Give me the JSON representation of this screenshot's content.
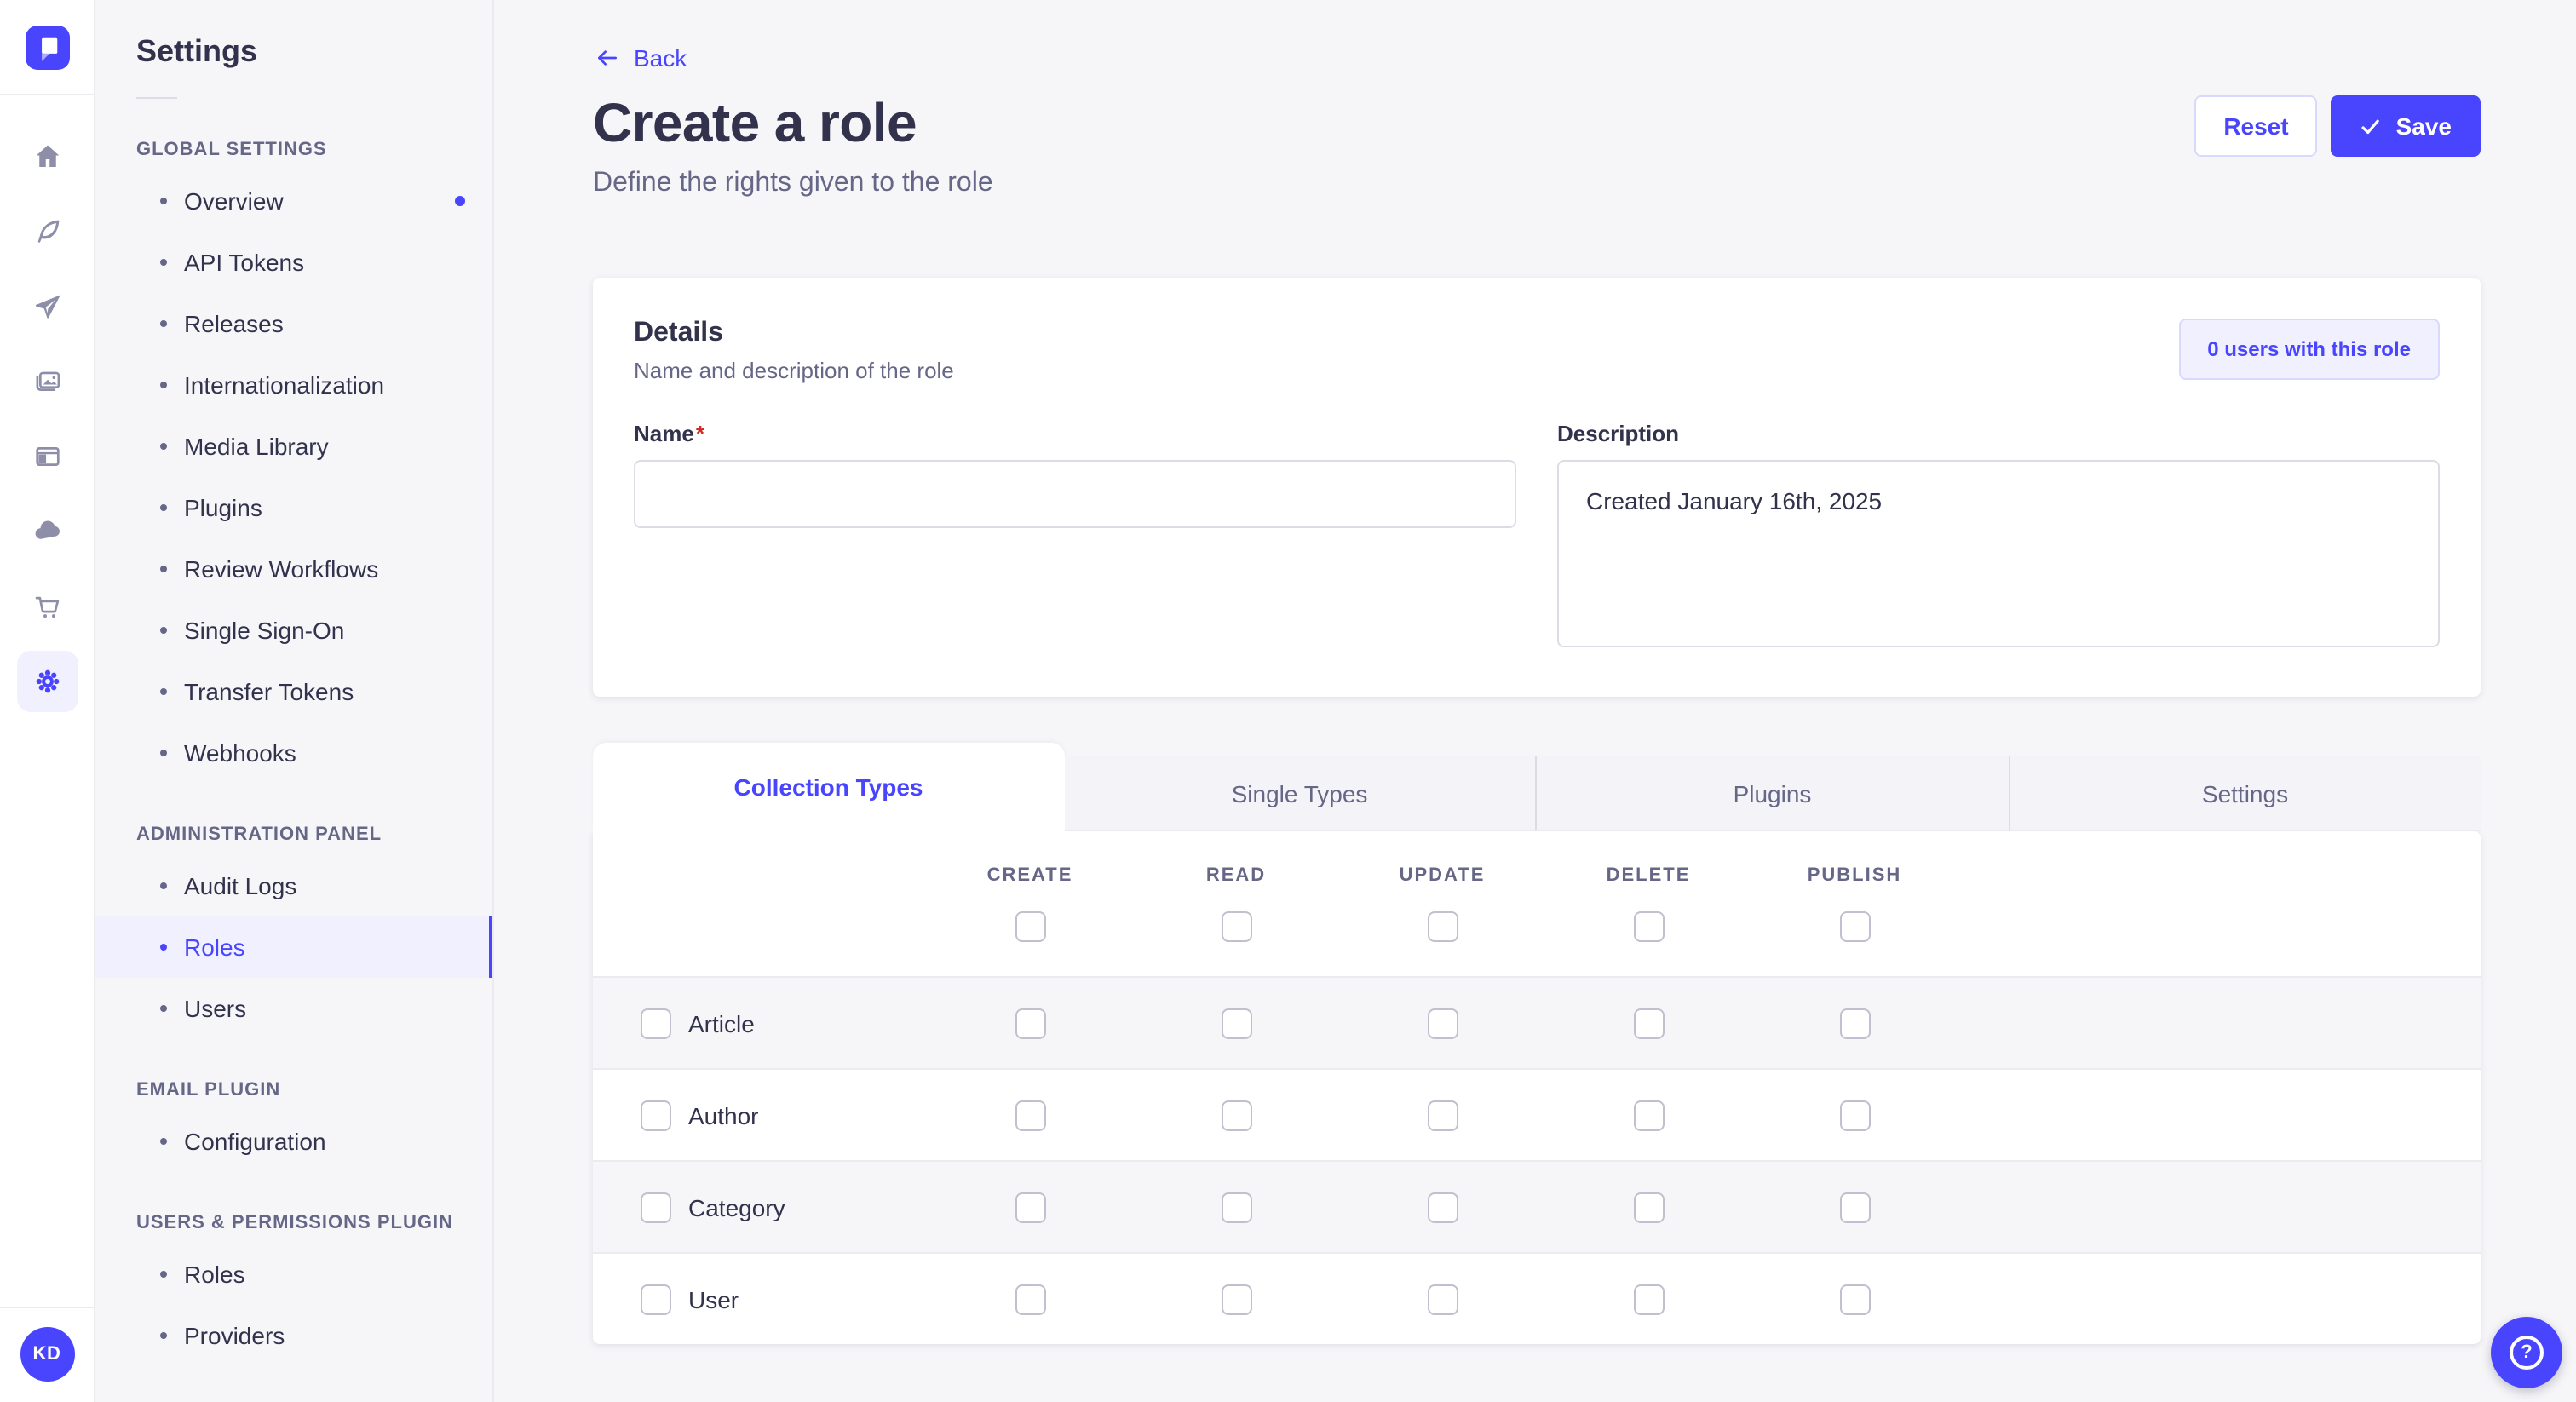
{
  "colors": {
    "accent": "#4945ff",
    "accent_soft_bg": "#f0f0ff",
    "accent_border": "#d9d8ff",
    "page_bg": "#f6f6f9",
    "surface": "#ffffff",
    "text": "#32324d",
    "text_muted": "#666687",
    "border": "#dcdce4",
    "border_light": "#eaeaef",
    "required_red": "#d02b20"
  },
  "left_rail": {
    "logo_icon": "strapi-logo",
    "icons": [
      "home-icon",
      "feather-icon",
      "paper-plane-icon",
      "pictures-icon",
      "layout-icon",
      "cloud-icon",
      "cart-icon",
      "gear-icon"
    ],
    "active_icon": "gear-icon",
    "avatar_initials": "KD"
  },
  "sidebar": {
    "title": "Settings",
    "sections": [
      {
        "label": "GLOBAL SETTINGS",
        "items": [
          {
            "label": "Overview",
            "notification": true
          },
          {
            "label": "API Tokens"
          },
          {
            "label": "Releases"
          },
          {
            "label": "Internationalization"
          },
          {
            "label": "Media Library"
          },
          {
            "label": "Plugins"
          },
          {
            "label": "Review Workflows"
          },
          {
            "label": "Single Sign-On"
          },
          {
            "label": "Transfer Tokens"
          },
          {
            "label": "Webhooks"
          }
        ]
      },
      {
        "label": "ADMINISTRATION PANEL",
        "items": [
          {
            "label": "Audit Logs"
          },
          {
            "label": "Roles",
            "active": true
          },
          {
            "label": "Users"
          }
        ]
      },
      {
        "label": "EMAIL PLUGIN",
        "items": [
          {
            "label": "Configuration"
          }
        ]
      },
      {
        "label": "USERS & PERMISSIONS PLUGIN",
        "items": [
          {
            "label": "Roles"
          },
          {
            "label": "Providers"
          }
        ]
      }
    ]
  },
  "header": {
    "back_label": "Back",
    "title": "Create a role",
    "subtitle": "Define the rights given to the role",
    "reset_label": "Reset",
    "save_label": "Save",
    "save_icon": "check-icon"
  },
  "details": {
    "title": "Details",
    "subtitle": "Name and description of the role",
    "users_button": "0 users with this role",
    "name_label": "Name",
    "required_mark": "*",
    "name_value": "",
    "description_label": "Description",
    "description_value": "Created January 16th, 2025"
  },
  "tabs": [
    {
      "label": "Collection Types",
      "active": true
    },
    {
      "label": "Single Types"
    },
    {
      "label": "Plugins"
    },
    {
      "label": "Settings"
    }
  ],
  "permissions": {
    "columns": [
      "CREATE",
      "READ",
      "UPDATE",
      "DELETE",
      "PUBLISH"
    ],
    "select_all": [
      false,
      false,
      false,
      false,
      false
    ],
    "rows": [
      {
        "label": "Article",
        "selected": false,
        "values": [
          false,
          false,
          false,
          false,
          false
        ]
      },
      {
        "label": "Author",
        "selected": false,
        "values": [
          false,
          false,
          false,
          false,
          false
        ]
      },
      {
        "label": "Category",
        "selected": false,
        "values": [
          false,
          false,
          false,
          false,
          false
        ]
      },
      {
        "label": "User",
        "selected": false,
        "values": [
          false,
          false,
          false,
          false,
          false
        ]
      }
    ]
  },
  "help": {
    "icon": "question-mark-icon"
  }
}
